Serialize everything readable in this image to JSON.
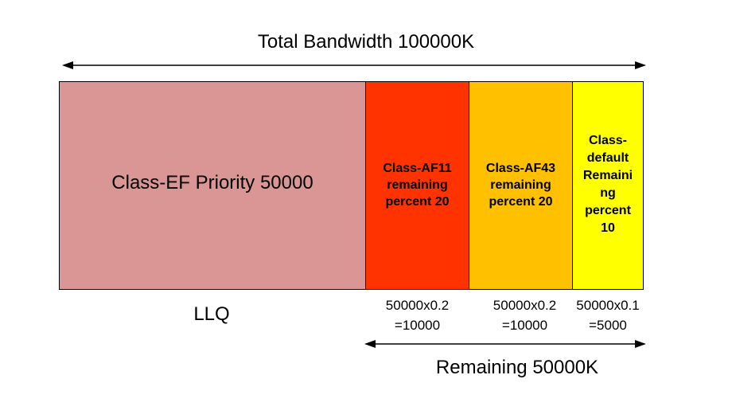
{
  "diagram": {
    "total_bandwidth_label": "Total Bandwidth 100000K",
    "remaining_label": "Remaining 50000K",
    "llq_label": "LLQ",
    "classes": [
      {
        "id": "ef",
        "label": "Class-EF Priority 50000",
        "color": "#d99694"
      },
      {
        "id": "af11",
        "label": "Class-AF11\nremaining\npercent 20",
        "color": "#ff3300",
        "calculation": "50000x0.2\n=10000"
      },
      {
        "id": "af43",
        "label": "Class-AF43\nremaining\npercent 20",
        "color": "#ffc000",
        "calculation": "50000x0.2\n=10000"
      },
      {
        "id": "default",
        "label": "Class-\ndefault\nRemaini\nng\npercent\n10",
        "color": "#ffff00",
        "calculation": "50000x0.1\n=5000"
      }
    ]
  }
}
